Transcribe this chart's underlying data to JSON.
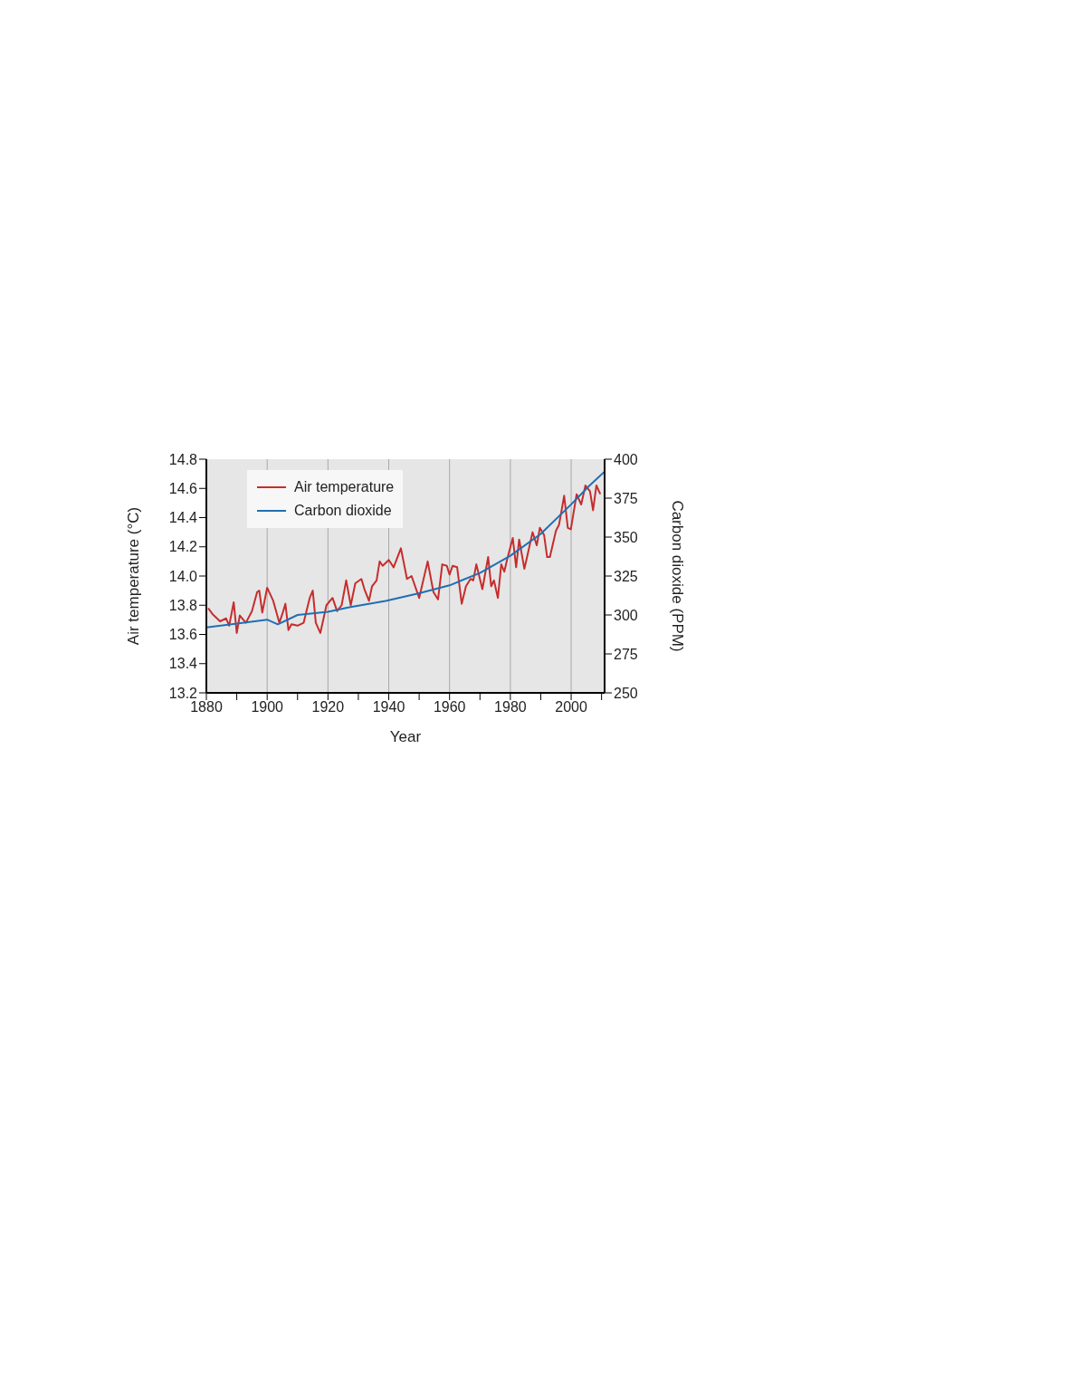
{
  "chart_data": {
    "type": "line",
    "xlabel": "Year",
    "ylabel": "Air temperature (°C)",
    "y2label": "Carbon dioxide (PPM)",
    "xlim": [
      1880,
      2011
    ],
    "xticks": [
      1880,
      {
        "value": 1890,
        "label": null
      },
      1900,
      {
        "value": 1910,
        "label": null
      },
      1920,
      {
        "value": 1930,
        "label": null
      },
      1940,
      {
        "value": 1950,
        "label": null
      },
      1960,
      {
        "value": 1970,
        "label": null
      },
      1980,
      {
        "value": 1990,
        "label": null
      },
      2000,
      {
        "value": 2010,
        "label": null
      }
    ],
    "ylim": [
      13.2,
      14.8
    ],
    "yticks": [
      13.2,
      13.4,
      13.6,
      13.8,
      {
        "value": 14,
        "label": "14.0"
      },
      14.2,
      14.4,
      14.6,
      14.8
    ],
    "y2lim": [
      250,
      400
    ],
    "y2ticks": [
      250,
      275,
      300,
      325,
      350,
      375,
      400
    ],
    "grid": "x",
    "legend": "top left",
    "line_style": "solid",
    "series": [
      {
        "name": "Air temperature",
        "color": "#c62d2d",
        "x": [
          1880.6,
          1882,
          1884.5,
          1886.5,
          1887.5,
          1889,
          1890,
          1891,
          1893,
          1895,
          1896.7,
          1897.4,
          1898.4,
          1900,
          1902,
          1904,
          1905,
          1906,
          1907,
          1908,
          1910,
          1912,
          1914,
          1915,
          1916,
          1917.5,
          1919.5,
          1921.5,
          1923,
          1924.5,
          1926,
          1927.5,
          1929,
          1931,
          1932,
          1933.5,
          1934.5,
          1936,
          1937,
          1938,
          1940,
          1941.6,
          1944,
          1946,
          1947.5,
          1950,
          1952.8,
          1954.7,
          1956.2,
          1957.6,
          1959.1,
          1960,
          1961,
          1962.5,
          1964,
          1965.4,
          1966.9,
          1967.8,
          1968.8,
          1970.8,
          1972.7,
          1973.7,
          1974.6,
          1975.9,
          1977,
          1978,
          1979,
          1980.8,
          1981.9,
          1982.9,
          1984.6,
          1985.6,
          1987.3,
          1988.7,
          1989.7,
          1991.1,
          1992.1,
          1993,
          1995,
          1996,
          1997.7,
          1998.9,
          1999.9,
          2001.8,
          2003.3,
          2004.7,
          2006.2,
          2007.2,
          2008.3,
          2009.6
        ],
        "values": [
          13.78,
          13.74,
          13.69,
          13.71,
          13.66,
          13.82,
          13.61,
          13.73,
          13.68,
          13.76,
          13.89,
          13.9,
          13.75,
          13.92,
          13.83,
          13.68,
          13.74,
          13.81,
          13.63,
          13.67,
          13.66,
          13.68,
          13.85,
          13.9,
          13.68,
          13.61,
          13.8,
          13.85,
          13.76,
          13.8,
          13.97,
          13.8,
          13.95,
          13.98,
          13.91,
          13.83,
          13.93,
          13.97,
          14.1,
          14.07,
          14.11,
          14.06,
          14.19,
          13.98,
          14.0,
          13.85,
          14.1,
          13.89,
          13.84,
          14.08,
          14.07,
          14.01,
          14.07,
          14.06,
          13.81,
          13.93,
          13.98,
          13.97,
          14.08,
          13.91,
          14.13,
          13.93,
          13.97,
          13.85,
          14.08,
          14.03,
          14.12,
          14.26,
          14.06,
          14.25,
          14.05,
          14.14,
          14.3,
          14.21,
          14.33,
          14.28,
          14.13,
          14.13,
          14.31,
          14.35,
          14.55,
          14.33,
          14.32,
          14.56,
          14.49,
          14.62,
          14.58,
          14.45,
          14.62,
          14.56
        ]
      },
      {
        "name": "Carbon dioxide",
        "color": "#1f6fb4",
        "axis": "y2",
        "x": [
          1880,
          1900,
          1903.5,
          1910,
          1920,
          1927,
          1939,
          1950,
          1960,
          1970,
          1980,
          1990,
          2000,
          2006,
          2011
        ],
        "values": [
          292,
          297,
          294,
          300,
          302,
          305,
          309,
          314,
          319,
          327,
          338,
          352,
          371,
          383,
          392
        ]
      }
    ]
  }
}
